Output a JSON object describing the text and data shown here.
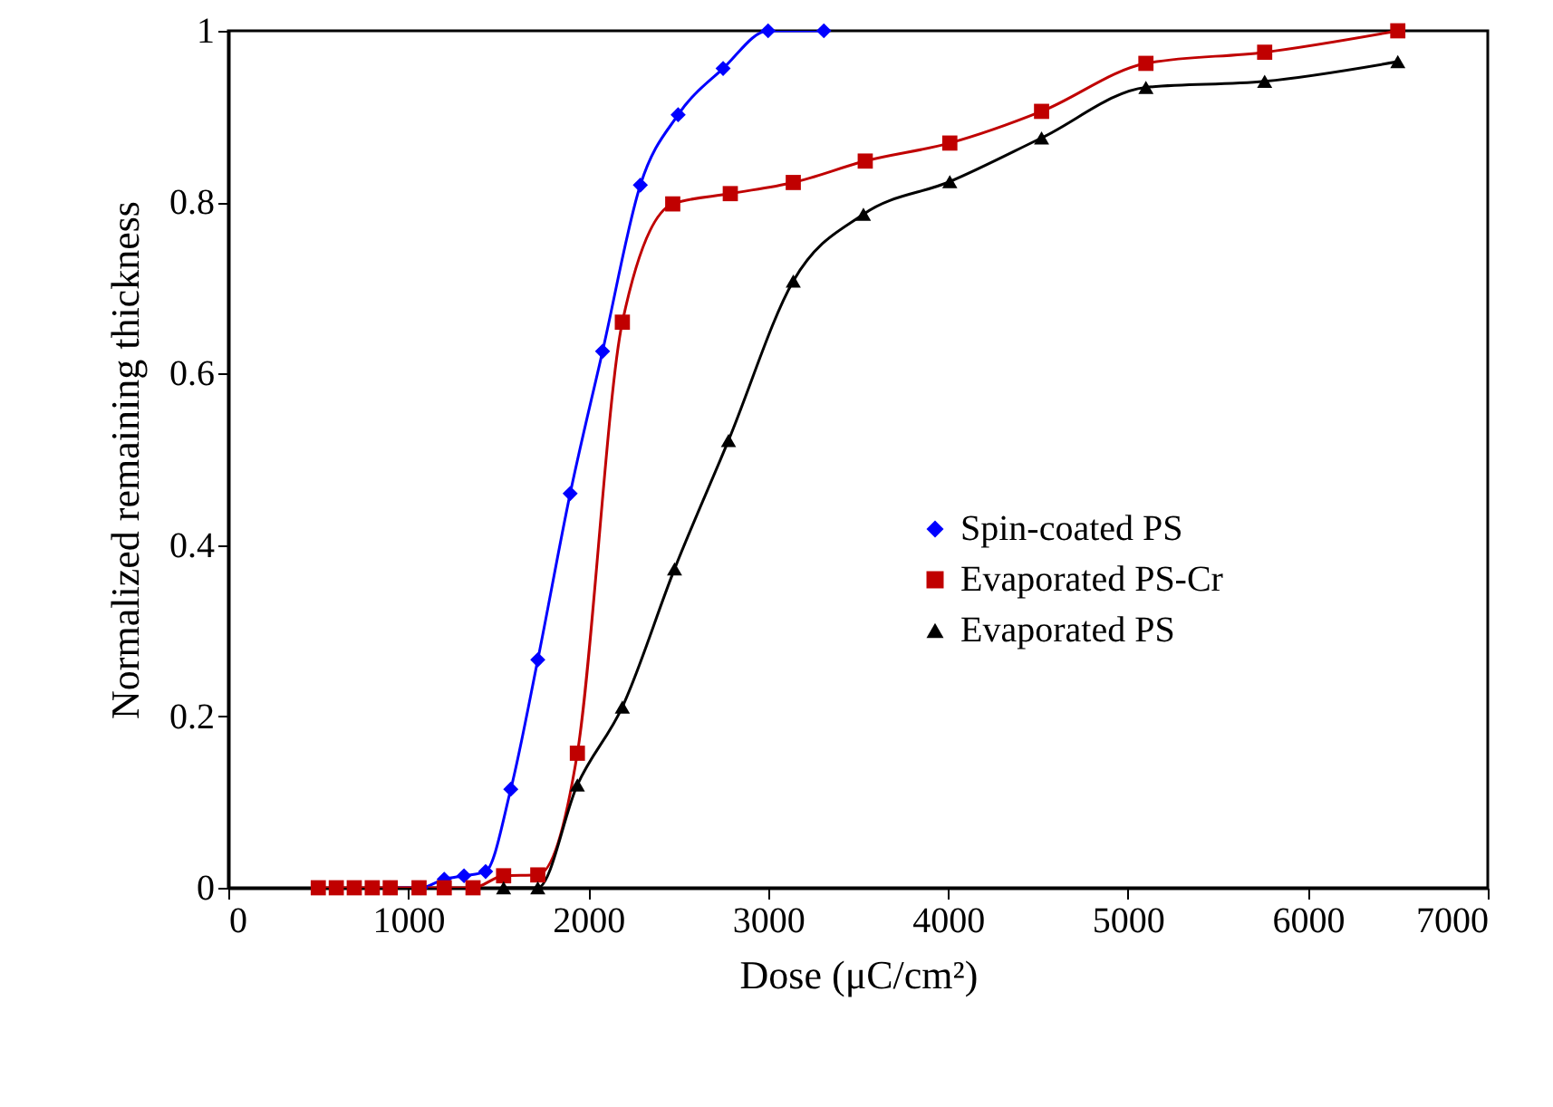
{
  "chart_data": {
    "type": "line",
    "xlabel": "Dose (μC/cm²)",
    "ylabel": "Normalized remaining thickness",
    "xlim": [
      0,
      7000
    ],
    "xticks": [
      0,
      1000,
      2000,
      3000,
      4000,
      5000,
      6000,
      7000
    ],
    "ylim": [
      0,
      1
    ],
    "yticks": [
      0,
      0.2,
      0.4,
      0.6,
      0.8,
      1
    ],
    "grid": false,
    "legend": "right",
    "series": [
      {
        "name": "Spin-coated PS",
        "color": "#0000ff",
        "marker": "diamond",
        "x": [
          900,
          1070,
          1200,
          1310,
          1430,
          1570,
          1720,
          1900,
          2080,
          2290,
          2500,
          2750,
          3000,
          3310
        ],
        "values": [
          0,
          0,
          0.01,
          0.014,
          0.019,
          0.115,
          0.266,
          0.46,
          0.626,
          0.82,
          0.902,
          0.956,
          1.0,
          1.0
        ]
      },
      {
        "name": "Evaporated PS-Cr",
        "color": "#c00000",
        "marker": "square",
        "x": [
          500,
          600,
          700,
          800,
          900,
          1060,
          1200,
          1360,
          1530,
          1720,
          1940,
          2190,
          2470,
          2790,
          3140,
          3540,
          4010,
          4520,
          5100,
          5760,
          6500
        ],
        "values": [
          0,
          0,
          0,
          0,
          0,
          0,
          0,
          0,
          0.014,
          0.015,
          0.157,
          0.66,
          0.798,
          0.81,
          0.823,
          0.848,
          0.869,
          0.906,
          0.962,
          0.975,
          1.0
        ]
      },
      {
        "name": "Evaporated PS",
        "color": "#000000",
        "marker": "triangle",
        "x": [
          1530,
          1720,
          1940,
          2190,
          2480,
          2780,
          3140,
          3530,
          4010,
          4520,
          5100,
          5760,
          6500
        ],
        "values": [
          0,
          0,
          0.12,
          0.211,
          0.372,
          0.522,
          0.708,
          0.786,
          0.824,
          0.875,
          0.934,
          0.941,
          0.964
        ]
      }
    ]
  }
}
